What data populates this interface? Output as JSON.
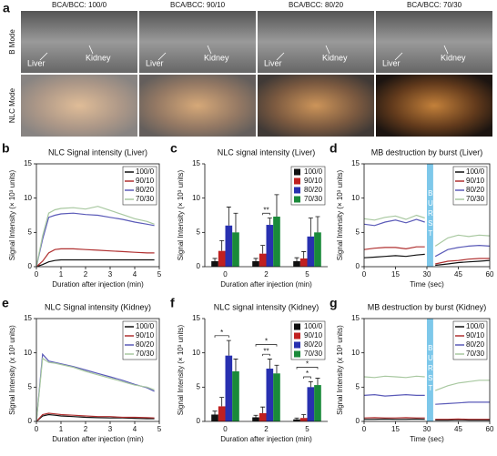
{
  "panel_a": {
    "letter": "a",
    "columns": [
      "BCA/BCC: 100/0",
      "BCA/BCC: 90/10",
      "BCA/BCC: 80/20",
      "BCA/BCC: 70/30"
    ],
    "rows": [
      "B Mode",
      "NLC Mode"
    ],
    "organ_labels": [
      "Liver",
      "Kidney"
    ]
  },
  "chart_data": [
    {
      "type": "line",
      "letter": "b",
      "title": "NLC Signal intensity (Liver)",
      "xlabel": "Duration after injection (min)",
      "ylabel": "Signal Intensity (× 10³ units)",
      "x": [
        0,
        0.25,
        0.5,
        0.75,
        1,
        1.5,
        2,
        2.5,
        3,
        3.5,
        4,
        4.5,
        4.8
      ],
      "series": [
        {
          "name": "100/0",
          "color": "#111111",
          "values": [
            0,
            0.3,
            0.7,
            0.9,
            1.0,
            1.0,
            1.0,
            1.0,
            1.0,
            1.0,
            1.0,
            1.0,
            1.0
          ]
        },
        {
          "name": "90/10",
          "color": "#b03030",
          "values": [
            0,
            0.8,
            2.0,
            2.5,
            2.6,
            2.6,
            2.5,
            2.4,
            2.3,
            2.2,
            2.1,
            2.0,
            2.0
          ]
        },
        {
          "name": "80/20",
          "color": "#5a5ab8",
          "values": [
            0,
            4.0,
            7.2,
            7.5,
            7.7,
            7.8,
            7.6,
            7.5,
            7.2,
            6.9,
            6.5,
            6.2,
            6.0
          ]
        },
        {
          "name": "70/30",
          "color": "#a8c8a0",
          "values": [
            0,
            4.5,
            7.8,
            8.3,
            8.5,
            8.6,
            8.4,
            8.8,
            8.2,
            7.6,
            7.0,
            6.6,
            6.2
          ]
        }
      ],
      "xlim": [
        0,
        5
      ],
      "xticks": [
        0,
        1,
        2,
        3,
        4,
        5
      ],
      "ylim": [
        0,
        15
      ],
      "yticks": [
        0,
        5,
        10,
        15
      ]
    },
    {
      "type": "bar",
      "letter": "c",
      "title": "NLC signal intensity (Liver)",
      "xlabel": "Duration after injection (min)",
      "ylabel": "Signal Intensity (× 10³ units)",
      "categories": [
        "0",
        "2",
        "5"
      ],
      "series": [
        {
          "name": "100/0",
          "color": "#111111",
          "values": [
            0.8,
            0.8,
            0.8
          ],
          "errors": [
            0.4,
            0.4,
            0.5
          ]
        },
        {
          "name": "90/10",
          "color": "#c02020",
          "values": [
            2.3,
            1.9,
            1.2
          ],
          "errors": [
            1.5,
            1.2,
            1.0
          ]
        },
        {
          "name": "80/20",
          "color": "#2830b0",
          "values": [
            6.0,
            6.1,
            4.4
          ],
          "errors": [
            2.7,
            1.0,
            2.7
          ]
        },
        {
          "name": "70/30",
          "color": "#1a8a3a",
          "values": [
            5.0,
            7.3,
            5.0
          ],
          "errors": [
            2.8,
            3.2,
            2.3
          ]
        }
      ],
      "annotations": [
        {
          "text": "**",
          "category": 1,
          "from": 1,
          "to": 2
        }
      ],
      "ylim": [
        0,
        15
      ],
      "yticks": [
        0,
        5,
        10,
        15
      ]
    },
    {
      "type": "line",
      "letter": "d",
      "title": "MB destruction by burst (Liver)",
      "xlabel": "Time (sec)",
      "ylabel": "Signal Intensity (× 10³ units)",
      "x": [
        0,
        5,
        10,
        15,
        20,
        25,
        29,
        31.5,
        34,
        40,
        45,
        50,
        55,
        60
      ],
      "series": [
        {
          "name": "100/0",
          "color": "#111111",
          "values": [
            1.3,
            1.4,
            1.5,
            1.6,
            1.5,
            1.7,
            1.8,
            null,
            0.2,
            0.4,
            0.6,
            0.7,
            0.8,
            0.9
          ]
        },
        {
          "name": "90/10",
          "color": "#b03030",
          "values": [
            2.5,
            2.7,
            2.8,
            2.8,
            2.6,
            2.9,
            2.9,
            null,
            0.4,
            0.8,
            0.9,
            1.1,
            1.2,
            1.2
          ]
        },
        {
          "name": "80/20",
          "color": "#5a5ab8",
          "values": [
            6.2,
            6.0,
            6.5,
            6.8,
            6.4,
            6.9,
            6.5,
            null,
            1.5,
            2.5,
            2.8,
            3.0,
            3.1,
            3.0
          ]
        },
        {
          "name": "70/30",
          "color": "#a8c8a0",
          "values": [
            7.0,
            6.8,
            7.2,
            7.4,
            6.9,
            7.5,
            7.1,
            null,
            3.0,
            4.2,
            4.6,
            4.4,
            4.6,
            4.5
          ]
        }
      ],
      "burst": {
        "label": "BURST",
        "range": [
          30,
          33
        ]
      },
      "xlim": [
        0,
        60
      ],
      "xticks": [
        0,
        15,
        30,
        45,
        60
      ],
      "ylim": [
        0,
        15
      ],
      "yticks": [
        0,
        5,
        10,
        15
      ]
    },
    {
      "type": "line",
      "letter": "e",
      "title": "NLC Signal intensity (Kidney)",
      "xlabel": "Duration after injection (min)",
      "ylabel": "Signal Intensity (x 10³ units)",
      "x": [
        0,
        0.25,
        0.5,
        0.75,
        1,
        1.5,
        2,
        2.5,
        3,
        3.5,
        4,
        4.5,
        4.8
      ],
      "series": [
        {
          "name": "100/0",
          "color": "#111111",
          "values": [
            0,
            0.8,
            1.0,
            0.9,
            0.8,
            0.7,
            0.6,
            0.55,
            0.5,
            0.5,
            0.45,
            0.4,
            0.4
          ]
        },
        {
          "name": "90/10",
          "color": "#b03030",
          "values": [
            0,
            1.0,
            1.2,
            1.1,
            1.0,
            0.9,
            0.8,
            0.7,
            0.7,
            0.6,
            0.6,
            0.55,
            0.5
          ]
        },
        {
          "name": "80/20",
          "color": "#5a5ab8",
          "values": [
            0,
            9.8,
            8.8,
            8.6,
            8.4,
            8.0,
            7.5,
            7.0,
            6.5,
            6.0,
            5.4,
            4.9,
            4.4
          ]
        },
        {
          "name": "70/30",
          "color": "#a8c8a0",
          "values": [
            0,
            9.2,
            8.6,
            8.5,
            8.3,
            7.9,
            7.3,
            6.8,
            6.3,
            5.8,
            5.3,
            5.0,
            4.6
          ]
        }
      ],
      "xlim": [
        0,
        5
      ],
      "xticks": [
        0,
        1,
        2,
        3,
        4,
        5
      ],
      "ylim": [
        0,
        15
      ],
      "yticks": [
        0,
        5,
        10,
        15
      ]
    },
    {
      "type": "bar",
      "letter": "f",
      "title": "NLC signal intensity (Kidney)",
      "xlabel": "Duration after injection (min)",
      "ylabel": "Signal Intensity (× 10³ units)",
      "categories": [
        "0",
        "2",
        "5"
      ],
      "series": [
        {
          "name": "100/0",
          "color": "#111111",
          "values": [
            1.0,
            0.6,
            0.3
          ],
          "errors": [
            0.5,
            0.3,
            0.2
          ]
        },
        {
          "name": "90/10",
          "color": "#c02020",
          "values": [
            2.2,
            1.2,
            0.5
          ],
          "errors": [
            1.3,
            0.9,
            0.5
          ]
        },
        {
          "name": "80/20",
          "color": "#2830b0",
          "values": [
            9.6,
            7.7,
            5.0
          ],
          "errors": [
            2.2,
            1.4,
            0.8
          ]
        },
        {
          "name": "70/30",
          "color": "#1a8a3a",
          "values": [
            7.3,
            7.0,
            5.3
          ],
          "errors": [
            1.8,
            1.2,
            1.0
          ]
        }
      ],
      "annotations": [
        {
          "text": "*",
          "category": 0,
          "from": 0,
          "to": 2
        },
        {
          "text": "**",
          "category": 1,
          "from": 1,
          "to": 2
        },
        {
          "text": "*",
          "category": 1,
          "from": 0,
          "to": 3
        },
        {
          "text": "*",
          "category": 2,
          "from": 1,
          "to": 2
        },
        {
          "text": "*",
          "category": 2,
          "from": 0,
          "to": 3
        }
      ],
      "ylim": [
        0,
        15
      ],
      "yticks": [
        0,
        5,
        10,
        15
      ]
    },
    {
      "type": "line",
      "letter": "g",
      "title": "MB destruction by burst (Kidney)",
      "xlabel": "Time (sec)",
      "ylabel": "Signal Intensity (x 10³ units)",
      "x": [
        0,
        5,
        10,
        15,
        20,
        25,
        29,
        31.5,
        34,
        40,
        45,
        50,
        55,
        60
      ],
      "series": [
        {
          "name": "100/0",
          "color": "#111111",
          "values": [
            0.3,
            0.3,
            0.35,
            0.3,
            0.3,
            0.35,
            0.3,
            null,
            0.2,
            0.2,
            0.25,
            0.2,
            0.2,
            0.2
          ]
        },
        {
          "name": "90/10",
          "color": "#b03030",
          "values": [
            0.5,
            0.55,
            0.5,
            0.5,
            0.55,
            0.5,
            0.5,
            null,
            0.3,
            0.3,
            0.35,
            0.3,
            0.3,
            0.3
          ]
        },
        {
          "name": "80/20",
          "color": "#5a5ab8",
          "values": [
            3.8,
            3.9,
            3.7,
            3.8,
            3.9,
            3.8,
            3.8,
            null,
            2.5,
            2.6,
            2.7,
            2.8,
            2.8,
            2.8
          ]
        },
        {
          "name": "70/30",
          "color": "#a8c8a0",
          "values": [
            6.5,
            6.4,
            6.6,
            6.5,
            6.4,
            6.6,
            6.5,
            null,
            4.5,
            5.2,
            5.6,
            5.8,
            6.0,
            6.0
          ]
        }
      ],
      "burst": {
        "label": "BURST",
        "range": [
          30,
          33
        ]
      },
      "xlim": [
        0,
        60
      ],
      "xticks": [
        0,
        15,
        30,
        45,
        60
      ],
      "ylim": [
        0,
        15
      ],
      "yticks": [
        0,
        5,
        10,
        15
      ]
    }
  ]
}
